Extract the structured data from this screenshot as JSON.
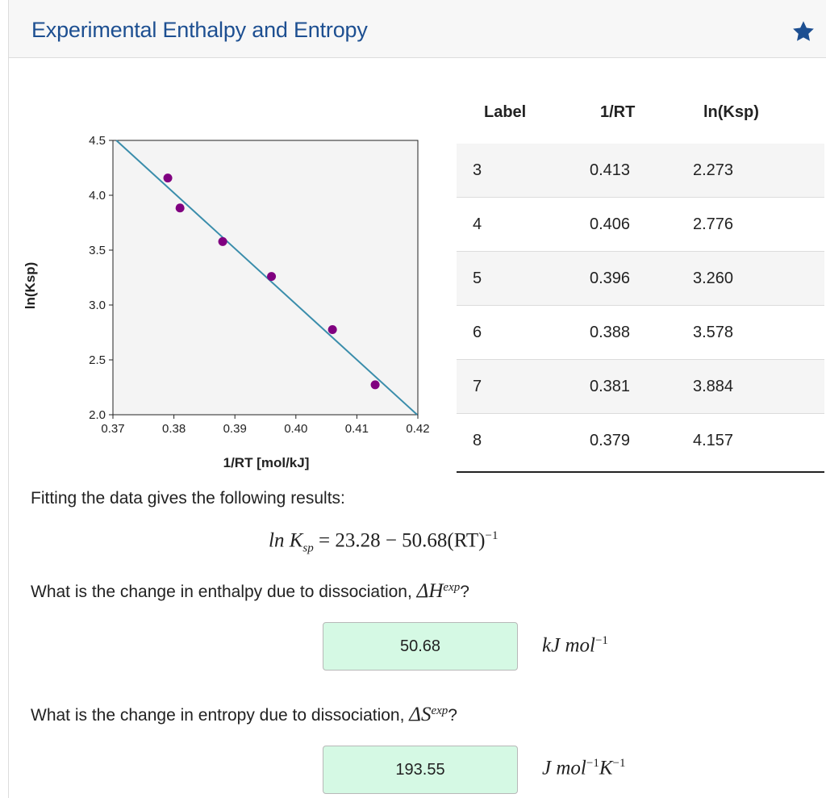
{
  "panel": {
    "title": "Experimental Enthalpy and Entropy"
  },
  "chart_data": {
    "type": "scatter",
    "xlabel": "1/RT [mol/kJ]",
    "ylabel": "ln(Ksp)",
    "xlim": [
      0.37,
      0.42
    ],
    "ylim": [
      2.0,
      4.5
    ],
    "x_ticks": [
      "0.37",
      "0.38",
      "0.39",
      "0.40",
      "0.41",
      "0.42"
    ],
    "y_ticks": [
      "2.0",
      "2.5",
      "3.0",
      "3.5",
      "4.0",
      "4.5"
    ],
    "x_tick_values": [
      0.37,
      0.38,
      0.39,
      0.4,
      0.41,
      0.42
    ],
    "y_tick_values": [
      2.0,
      2.5,
      3.0,
      3.5,
      4.0,
      4.5
    ],
    "points": [
      {
        "x": 0.413,
        "y": 2.273
      },
      {
        "x": 0.406,
        "y": 2.776
      },
      {
        "x": 0.396,
        "y": 3.26
      },
      {
        "x": 0.388,
        "y": 3.578
      },
      {
        "x": 0.381,
        "y": 3.884
      },
      {
        "x": 0.379,
        "y": 4.157
      }
    ],
    "fit_line": {
      "intercept": 23.28,
      "slope": -50.68
    },
    "point_color": "#800080",
    "line_color": "#3a8dab"
  },
  "table": {
    "headers": [
      "Label",
      "1/RT",
      "ln(Ksp)"
    ],
    "rows": [
      {
        "label": "3",
        "inv_rt": "0.413",
        "ln_ksp": "2.273"
      },
      {
        "label": "4",
        "inv_rt": "0.406",
        "ln_ksp": "2.776"
      },
      {
        "label": "5",
        "inv_rt": "0.396",
        "ln_ksp": "3.260"
      },
      {
        "label": "6",
        "inv_rt": "0.388",
        "ln_ksp": "3.578"
      },
      {
        "label": "7",
        "inv_rt": "0.381",
        "ln_ksp": "3.884"
      },
      {
        "label": "8",
        "inv_rt": "0.379",
        "ln_ksp": "4.157"
      }
    ]
  },
  "fit_text": "Fitting the data gives the following results:",
  "equation": {
    "lhs": "ln K",
    "lhs_sub": "sp",
    "rhs": " = 23.28 − 50.68(RT)",
    "rhs_sup": "−1"
  },
  "q1": {
    "text": "What is the change in enthalpy due to dissociation, ",
    "symbol": "ΔH",
    "symbol_sup": "exp",
    "end": "?",
    "answer": "50.68",
    "unit_main": "kJ mol",
    "unit_sup": "−1"
  },
  "q2": {
    "text": "What is the change in entropy due to dissociation, ",
    "symbol": "ΔS",
    "symbol_sup": "exp",
    "end": "?",
    "answer": "193.55",
    "unit_a": "J mol",
    "unit_a_sup": "−1",
    "unit_b": "K",
    "unit_b_sup": "−1"
  },
  "colors": {
    "title": "#1d4f91",
    "star": "#1d4f91",
    "answer_bg": "#d5f9e4"
  },
  "icons": {
    "favorite": "star-icon"
  }
}
